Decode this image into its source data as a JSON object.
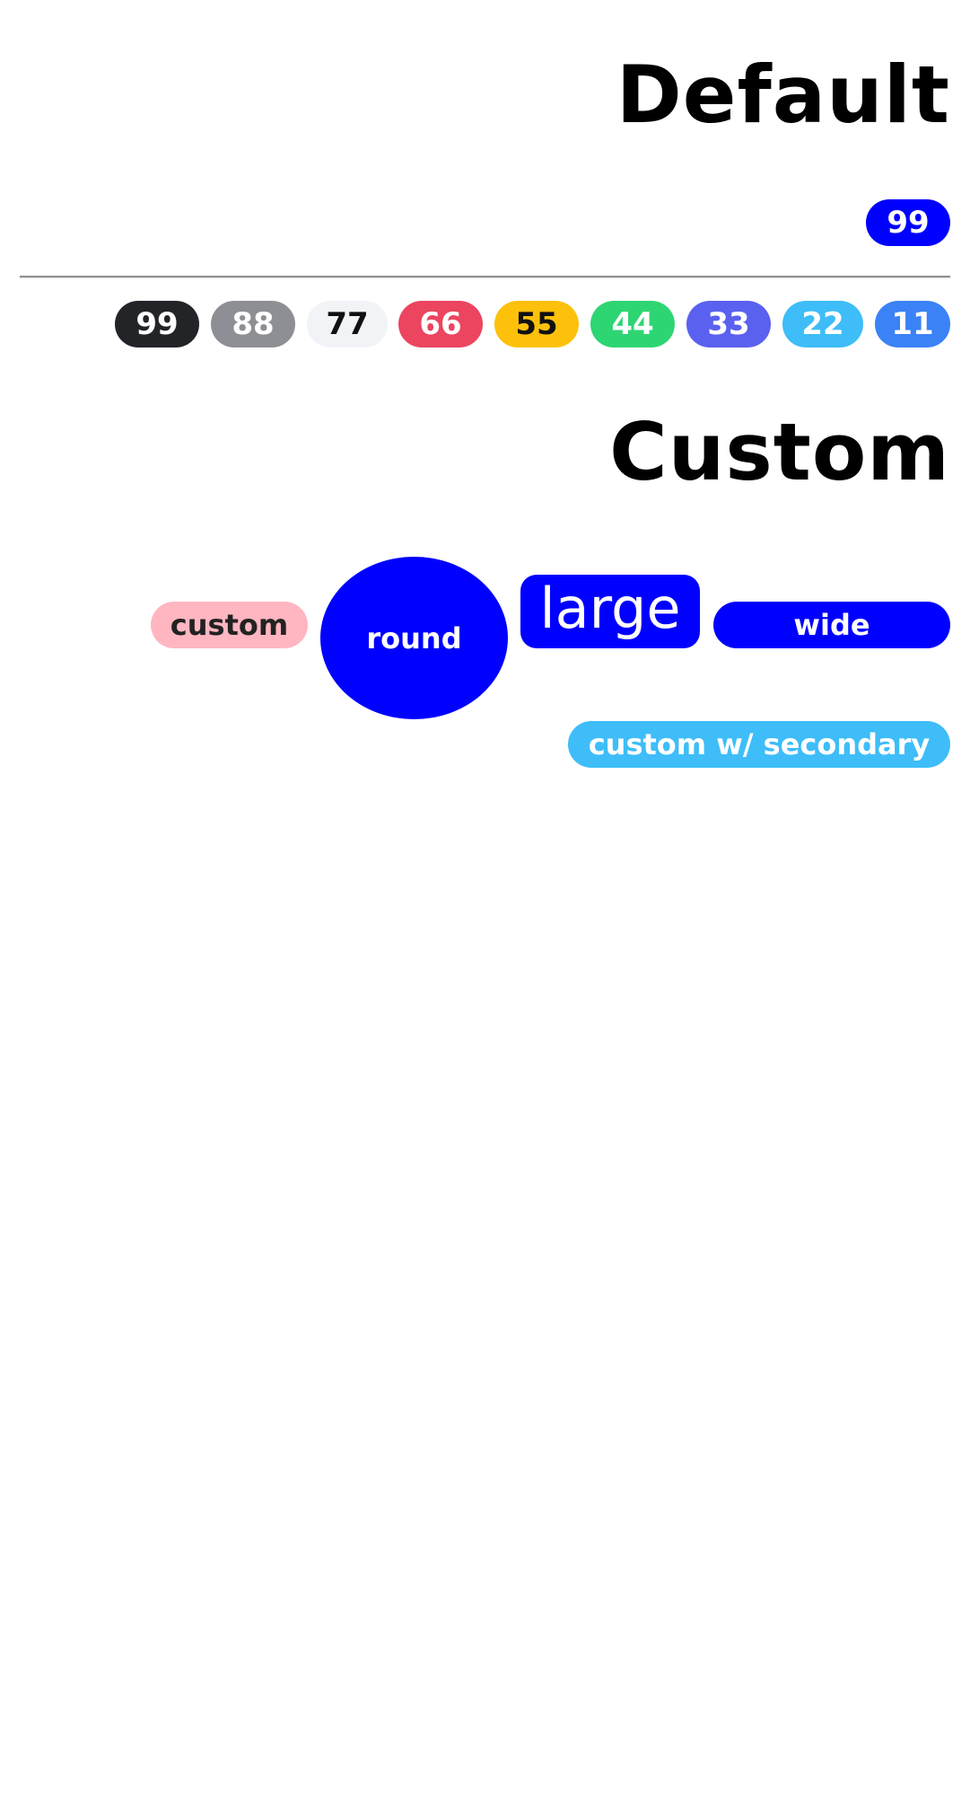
{
  "sections": {
    "default_title": "Default",
    "custom_title": "Custom"
  },
  "default_badge": {
    "label": "99",
    "background": "#0000ff",
    "text_color": "#ffffff"
  },
  "variant_badges": [
    {
      "label": "99",
      "background": "#232428",
      "text_color": "#ffffff"
    },
    {
      "label": "88",
      "background": "#8e8f94",
      "text_color": "#ffffff"
    },
    {
      "label": "77",
      "background": "#f2f3f7",
      "text_color": "#111111"
    },
    {
      "label": "66",
      "background": "#eb4560",
      "text_color": "#ffffff"
    },
    {
      "label": "55",
      "background": "#fdc10b",
      "text_color": "#111111"
    },
    {
      "label": "44",
      "background": "#2ed573",
      "text_color": "#ffffff"
    },
    {
      "label": "33",
      "background": "#5a61ef",
      "text_color": "#ffffff"
    },
    {
      "label": "22",
      "background": "#3ebdf8",
      "text_color": "#ffffff"
    },
    {
      "label": "11",
      "background": "#3b82f6",
      "text_color": "#ffffff"
    }
  ],
  "custom_badges": {
    "custom": {
      "label": "custom",
      "background": "#ffb6c1",
      "text_color": "#222222"
    },
    "round": {
      "label": "round",
      "background": "#0000ff",
      "text_color": "#ffffff"
    },
    "large": {
      "label": "large",
      "background": "#0000ff",
      "text_color": "#ffffff"
    },
    "wide": {
      "label": "wide",
      "background": "#0000ff",
      "text_color": "#ffffff"
    },
    "secondary": {
      "label": "custom w/ secondary",
      "background": "#3ebdf8",
      "text_color": "#ffffff"
    }
  }
}
